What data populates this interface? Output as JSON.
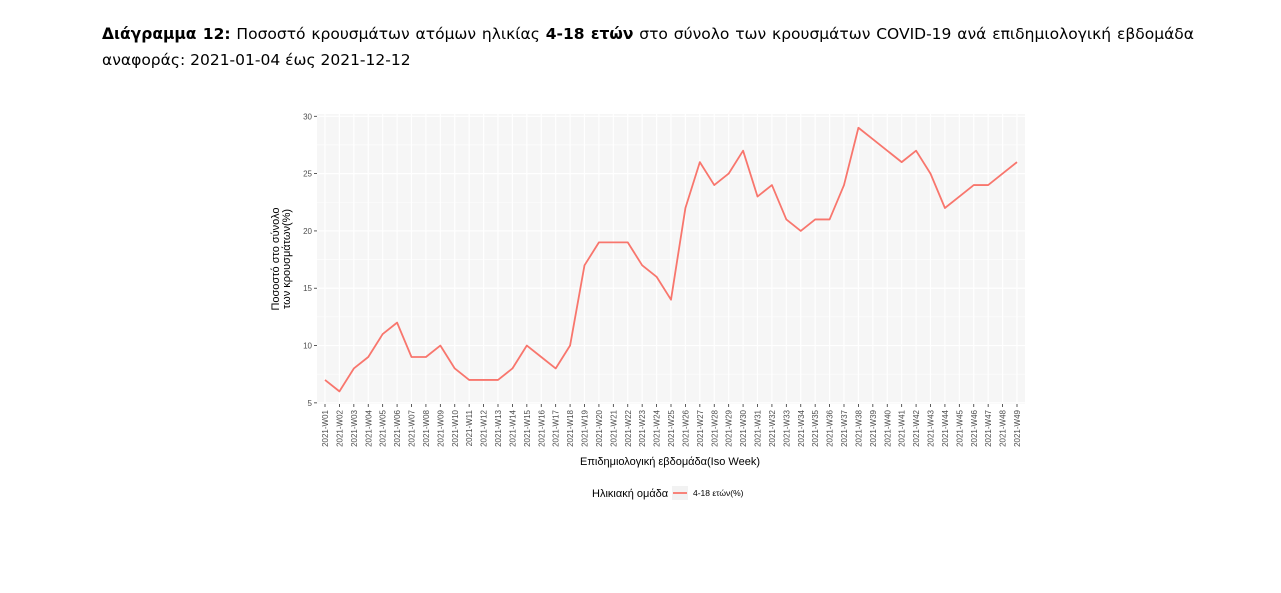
{
  "caption": {
    "label": "Διάγραμμα 12:",
    "text_before": " Ποσοστό κρουσμάτων ατόμων ηλικίας ",
    "bold_mid": "4-18 ετών",
    "text_after": " στο σύνολο των κρουσμάτων COVID-19 ανά επιδημιολογική εβδομάδα αναφοράς: 2021-01-04 έως 2021-12-12"
  },
  "chart_data": {
    "type": "line",
    "title": "",
    "xlabel": "Επιδημιολογική εβδομάδα(Iso Week)",
    "ylabel_lines": [
      "Ποσοστό στο σύνολο",
      "των κρουσμάτων(%)"
    ],
    "ylim": [
      4.9,
      30.2
    ],
    "yticks": [
      5,
      10,
      15,
      20,
      25,
      30
    ],
    "grid": true,
    "legend": {
      "title": "Ηλικιακή ομάδα",
      "position": "bottom"
    },
    "line_color": "#f8766d",
    "categories": [
      "2021-W01",
      "2021-W02",
      "2021-W03",
      "2021-W04",
      "2021-W05",
      "2021-W06",
      "2021-W07",
      "2021-W08",
      "2021-W09",
      "2021-W10",
      "2021-W11",
      "2021-W12",
      "2021-W13",
      "2021-W14",
      "2021-W15",
      "2021-W16",
      "2021-W17",
      "2021-W18",
      "2021-W19",
      "2021-W20",
      "2021-W21",
      "2021-W22",
      "2021-W23",
      "2021-W24",
      "2021-W25",
      "2021-W26",
      "2021-W27",
      "2021-W28",
      "2021-W29",
      "2021-W30",
      "2021-W31",
      "2021-W32",
      "2021-W33",
      "2021-W34",
      "2021-W35",
      "2021-W36",
      "2021-W37",
      "2021-W38",
      "2021-W39",
      "2021-W40",
      "2021-W41",
      "2021-W42",
      "2021-W43",
      "2021-W44",
      "2021-W45",
      "2021-W46",
      "2021-W47",
      "2021-W48",
      "2021-W49"
    ],
    "series": [
      {
        "name": "4-18 ετών(%)",
        "values": [
          7,
          6,
          8,
          9,
          11,
          12,
          9,
          9,
          10,
          8,
          7,
          7,
          7,
          8,
          10,
          9,
          8,
          10,
          17,
          19,
          19,
          19,
          17,
          16,
          14,
          22,
          26,
          24,
          25,
          27,
          23,
          24,
          21,
          20,
          21,
          21,
          24,
          29,
          28,
          27,
          26,
          27,
          25,
          22,
          23,
          24,
          24,
          25,
          26
        ]
      }
    ]
  }
}
